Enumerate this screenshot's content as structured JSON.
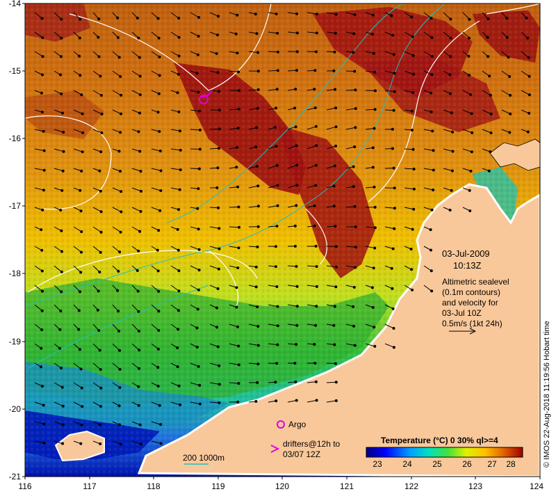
{
  "map": {
    "lat_ticks": [
      "-14",
      "-15",
      "-16",
      "-17",
      "-18",
      "-19",
      "-20",
      "-21"
    ],
    "lon_ticks": [
      "116",
      "117",
      "118",
      "119",
      "120",
      "121",
      "122",
      "123",
      "124"
    ],
    "date_text": "03-Jul-2009",
    "time_text": "10:13Z",
    "altimetry_lines": [
      "Altimetric sealevel",
      "(0.1m contours)",
      "and velocity for",
      "03-Jul 10Z",
      "0.5m/s (1kt 24h)"
    ],
    "argo_label": "Argo",
    "drifters_label_1": "drifters@12h to",
    "drifters_label_2": "03/07 12Z",
    "depth_scale_label": "200  1000m",
    "colorbar_title": "Temperature (°C) 0 30% ql>=4",
    "colorbar_ticks": [
      "23",
      "24",
      "25",
      "26",
      "27",
      "28"
    ],
    "credit": "© IMOS 22-Aug-2018 11:19:56 Hobart time",
    "colors": {
      "land": "#f9c89a",
      "coast_white": "#ffffff",
      "argo": "#e000e0",
      "depth_contour": "#20c0c0",
      "sst_warm": "#a00000",
      "sst_cool": "#0000a0"
    },
    "icons": {
      "argo_marker": "circle",
      "drifter_marker": "chevron-right",
      "velocity_arrow": "arrow"
    }
  }
}
